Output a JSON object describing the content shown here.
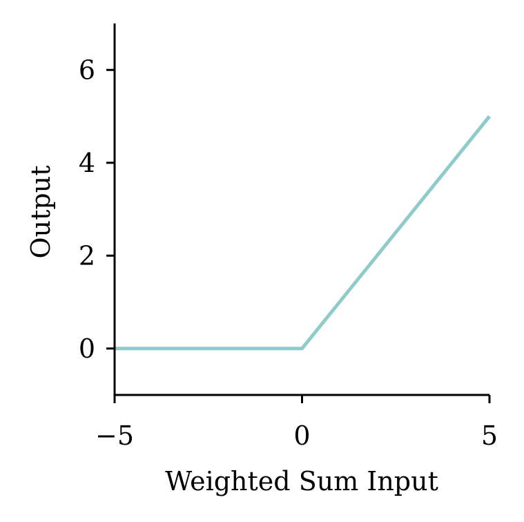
{
  "chart_data": {
    "type": "line",
    "title": "",
    "xlabel": "Weighted Sum Input",
    "ylabel": "Output",
    "xlim": [
      -5,
      5
    ],
    "ylim": [
      -1,
      7
    ],
    "xticks": [
      -5,
      0,
      5
    ],
    "xtick_labels": [
      "−5",
      "0",
      "5"
    ],
    "yticks": [
      0,
      2,
      4,
      6
    ],
    "ytick_labels": [
      "0",
      "2",
      "4",
      "6"
    ],
    "grid": false,
    "legend": "none",
    "series": [
      {
        "color": "#8ecbca",
        "x": [
          -5,
          0,
          5
        ],
        "y": [
          0,
          0,
          5
        ]
      }
    ]
  }
}
